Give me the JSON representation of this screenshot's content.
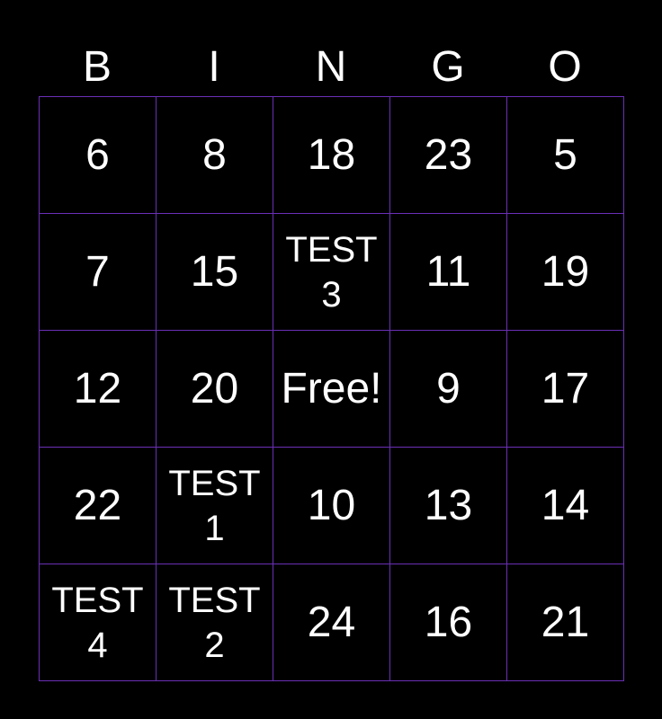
{
  "header": [
    "B",
    "I",
    "N",
    "G",
    "O"
  ],
  "colors": {
    "background": "#000000",
    "grid_line": "#6a2fb5",
    "text": "#ffffff"
  },
  "cells": [
    [
      "6",
      "8",
      "18",
      "23",
      "5"
    ],
    [
      "7",
      "15",
      "TEST\n3",
      "11",
      "19"
    ],
    [
      "12",
      "20",
      "Free!",
      "9",
      "17"
    ],
    [
      "22",
      "TEST\n1",
      "10",
      "13",
      "14"
    ],
    [
      "TEST\n4",
      "TEST\n2",
      "24",
      "16",
      "21"
    ]
  ]
}
